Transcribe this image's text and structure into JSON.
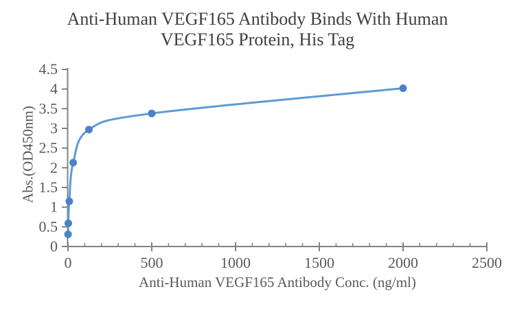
{
  "chart": {
    "title_line1": "Anti-Human VEGF165 Antibody Binds With Human",
    "title_line2": "VEGF165 Protein, His Tag",
    "xlabel": "Anti-Human VEGF165 Antibody Conc. (ng/ml)",
    "ylabel": "Abs.(OD450nm)"
  },
  "chart_data": {
    "type": "line",
    "title": "Anti-Human VEGF165 Antibody Binds With Human VEGF165 Protein, His Tag",
    "xlabel": "Anti-Human VEGF165 Antibody Conc. (ng/ml)",
    "ylabel": "Abs.(OD450nm)",
    "series": [
      {
        "name": "Anti-Human VEGF165 Antibody",
        "x": [
          0.49,
          1.95,
          7.81,
          31.25,
          125,
          500,
          2000
        ],
        "y": [
          0.31,
          0.59,
          1.15,
          2.13,
          2.97,
          3.38,
          4.02
        ]
      }
    ],
    "xlim": [
      0,
      2500
    ],
    "ylim": [
      0,
      4.5
    ],
    "x_tick_values": [
      0,
      500,
      1000,
      1500,
      2000,
      2500
    ],
    "x_tick_labels": [
      "0",
      "500",
      "1000",
      "1500",
      "2000",
      "2500"
    ],
    "x_minor_tick_step": 100,
    "y_tick_values": [
      0,
      0.5,
      1,
      1.5,
      2,
      2.5,
      3,
      3.5,
      4,
      4.5
    ],
    "y_tick_labels": [
      "0",
      "0.5",
      "1",
      "1.5",
      "2",
      "2.5",
      "3",
      "3.5",
      "4",
      "4.5"
    ],
    "grid": false,
    "legend": "none",
    "smooth_line": true,
    "marker": "circle",
    "colors": {
      "line": "#5B9BD5",
      "marker": "#4B82C4",
      "axis": "#828282",
      "tick_text": "#595959",
      "label_text": "#595959",
      "title_text": "#3F3F3F",
      "background": "#FFFFFF"
    }
  }
}
